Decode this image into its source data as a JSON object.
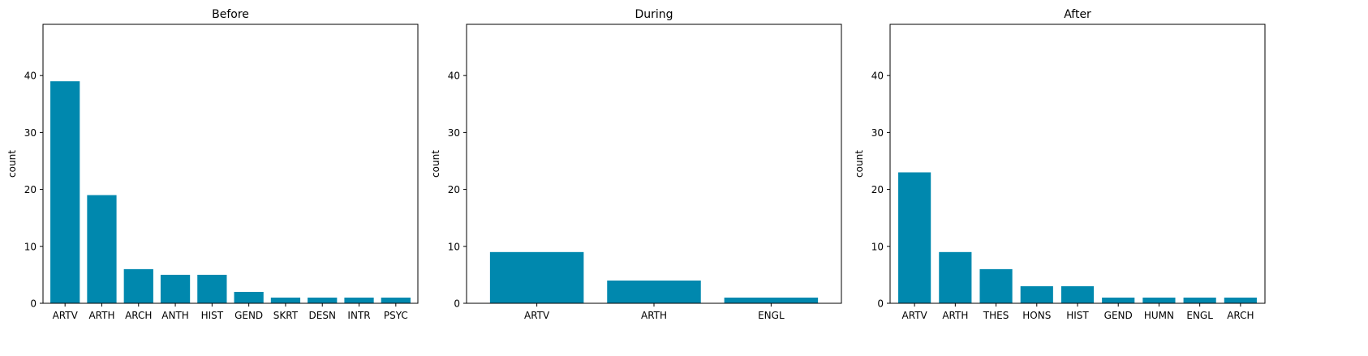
{
  "colors": {
    "bar": "#0088ae",
    "axis": "#000000",
    "background": "#ffffff"
  },
  "chart_data": [
    {
      "type": "bar",
      "title": "Before",
      "xlabel": "",
      "ylabel": "count",
      "ylim": [
        0,
        49
      ],
      "yticks": [
        0,
        10,
        20,
        30,
        40
      ],
      "grid": false,
      "categories": [
        "ARTV",
        "ARTH",
        "ARCH",
        "ANTH",
        "HIST",
        "GEND",
        "SKRT",
        "DESN",
        "INTR",
        "PSYC"
      ],
      "values": [
        39,
        19,
        6,
        5,
        5,
        2,
        1,
        1,
        1,
        1
      ]
    },
    {
      "type": "bar",
      "title": "During",
      "xlabel": "",
      "ylabel": "count",
      "ylim": [
        0,
        49
      ],
      "yticks": [
        0,
        10,
        20,
        30,
        40
      ],
      "grid": false,
      "categories": [
        "ARTV",
        "ARTH",
        "ENGL"
      ],
      "values": [
        9,
        4,
        1
      ]
    },
    {
      "type": "bar",
      "title": "After",
      "xlabel": "",
      "ylabel": "count",
      "ylim": [
        0,
        49
      ],
      "yticks": [
        0,
        10,
        20,
        30,
        40
      ],
      "grid": false,
      "categories": [
        "ARTV",
        "ARTH",
        "THES",
        "HONS",
        "HIST",
        "GEND",
        "HUMN",
        "ENGL",
        "ARCH"
      ],
      "values": [
        23,
        9,
        6,
        3,
        3,
        1,
        1,
        1,
        1
      ]
    }
  ]
}
